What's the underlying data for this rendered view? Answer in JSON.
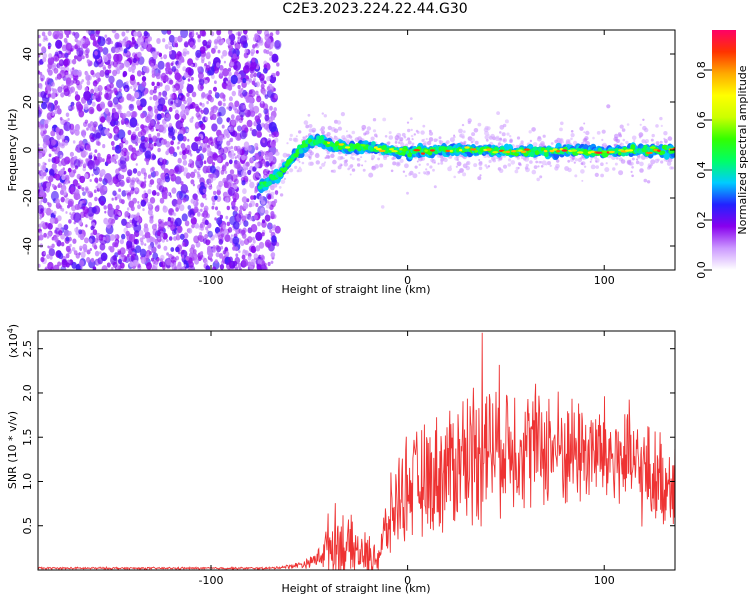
{
  "title": "C2E3.2023.224.22.44.G30",
  "chart_data": [
    {
      "type": "heatmap",
      "xlabel": "Height of straight line (km)",
      "ylabel": "Frequency (Hz)",
      "xlim": [
        -188,
        136
      ],
      "ylim": [
        -50,
        50
      ],
      "xticks": [
        -100,
        0,
        100
      ],
      "yticks": [
        -40,
        -20,
        0,
        20,
        40
      ],
      "colorbar": {
        "label": "Normalized spectral amplitude",
        "range": [
          0.0,
          0.96
        ],
        "ticks": [
          "0.0",
          "0.2",
          "0.4",
          "0.6",
          "0.8"
        ],
        "tick_values": [
          0.0,
          0.2,
          0.4,
          0.6,
          0.8
        ],
        "colors": [
          "#ffffff",
          "#cc99ff",
          "#8800ee",
          "#2222ff",
          "#00ccff",
          "#00ff66",
          "#33ff00",
          "#ccff00",
          "#ffff00",
          "#ffaa00",
          "#ff3300",
          "#ff0066"
        ]
      },
      "noise_region_x": [
        -188,
        -70
      ],
      "signal_track": {
        "x": [
          -75,
          -70,
          -65,
          -60,
          -55,
          -50,
          -45,
          -40,
          -30,
          -20,
          -10,
          0,
          20,
          40,
          60,
          80,
          100,
          120,
          136
        ],
        "freq_hz": [
          -15,
          -13,
          -10,
          -5,
          0,
          3,
          4,
          2,
          1,
          1,
          0,
          -1,
          0,
          0,
          -1,
          0,
          -1,
          0,
          0
        ]
      },
      "grid": false
    },
    {
      "type": "line",
      "xlabel": "Height of straight line (km)",
      "ylabel": "SNR (10 * v/v)",
      "scale_label": "(x10",
      "scale_exp": "4",
      "scale_close": ")",
      "xlim": [
        -188,
        136
      ],
      "ylim": [
        0,
        2.7
      ],
      "xticks": [
        -100,
        0,
        100
      ],
      "yticks": [
        "0.5",
        "1.0",
        "1.5",
        "2.0",
        "2.5"
      ],
      "ytick_values": [
        0.5,
        1.0,
        1.5,
        2.0,
        2.5
      ],
      "color": "#ee3333",
      "envelope": {
        "x": [
          -188,
          -70,
          -60,
          -50,
          -45,
          -40,
          -35,
          -30,
          -25,
          -20,
          -15,
          -10,
          -5,
          0,
          10,
          20,
          30,
          40,
          50,
          60,
          70,
          80,
          90,
          100,
          110,
          120,
          130,
          136
        ],
        "mean": [
          0.02,
          0.02,
          0.04,
          0.08,
          0.15,
          0.3,
          0.3,
          0.25,
          0.2,
          0.15,
          0.15,
          0.5,
          0.8,
          0.95,
          1.0,
          1.15,
          1.3,
          1.4,
          1.45,
          1.4,
          1.4,
          1.35,
          1.35,
          1.3,
          1.25,
          1.1,
          1.0,
          1.0
        ],
        "spread": [
          0.01,
          0.01,
          0.02,
          0.05,
          0.1,
          0.3,
          0.4,
          0.3,
          0.25,
          0.2,
          0.2,
          0.35,
          0.45,
          0.5,
          0.55,
          0.6,
          0.7,
          0.7,
          0.65,
          0.6,
          0.6,
          0.55,
          0.55,
          0.55,
          0.55,
          0.5,
          0.45,
          0.45
        ]
      },
      "peak": {
        "x": 38,
        "y": 2.68
      },
      "grid": false
    }
  ]
}
